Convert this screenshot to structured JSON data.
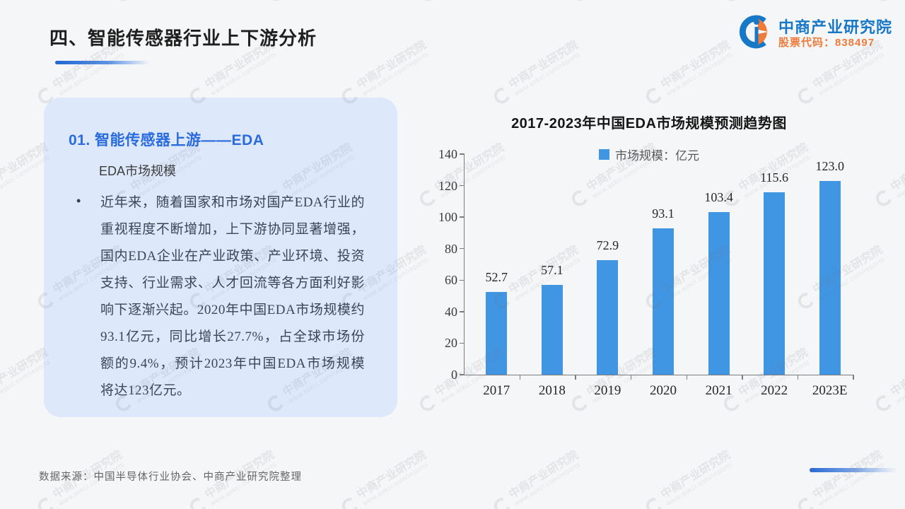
{
  "page": {
    "background": "#f5f6f7",
    "watermark": {
      "line1": "中商产业研究院",
      "line2": "www.askci.com/reports"
    }
  },
  "header": {
    "title": "四、智能传感器行业上下游分析",
    "logo": {
      "company": "中商产业研究院",
      "stock": "股票代码：838497",
      "brand_blue": "#1778c8",
      "brand_orange": "#ef7a3a"
    }
  },
  "card": {
    "heading": "01. 智能传感器上游——EDA",
    "subheading": "EDA市场规模",
    "bullet": "•",
    "paragraph": "近年来，随着国家和市场对国产EDA行业的重视程度不断增加，上下游协同显著增强，国内EDA企业在产业政策、产业环境、投资支持、行业需求、人才回流等各方面利好影响下逐渐兴起。2020年中国EDA市场规模约93.1亿元，同比增长27.7%，占全球市场份额的9.4%，预计2023年中国EDA市场规模将达123亿元。"
  },
  "chart_data": {
    "type": "bar",
    "title": "2017-2023年中国EDA市场规模预测趋势图",
    "legend": "市场规模：亿元",
    "categories": [
      "2017",
      "2018",
      "2019",
      "2020",
      "2021",
      "2022",
      "2023E"
    ],
    "values": [
      52.7,
      57.1,
      72.9,
      93.1,
      103.4,
      115.6,
      123.0
    ],
    "value_decimals": 1,
    "ylim": [
      0,
      140
    ],
    "ytick_step": 20,
    "bar_color": "#4196e4",
    "grid": false,
    "legend_position": "top"
  },
  "footer": {
    "source": "数据来源：中国半导体行业协会、中商产业研究院整理"
  }
}
